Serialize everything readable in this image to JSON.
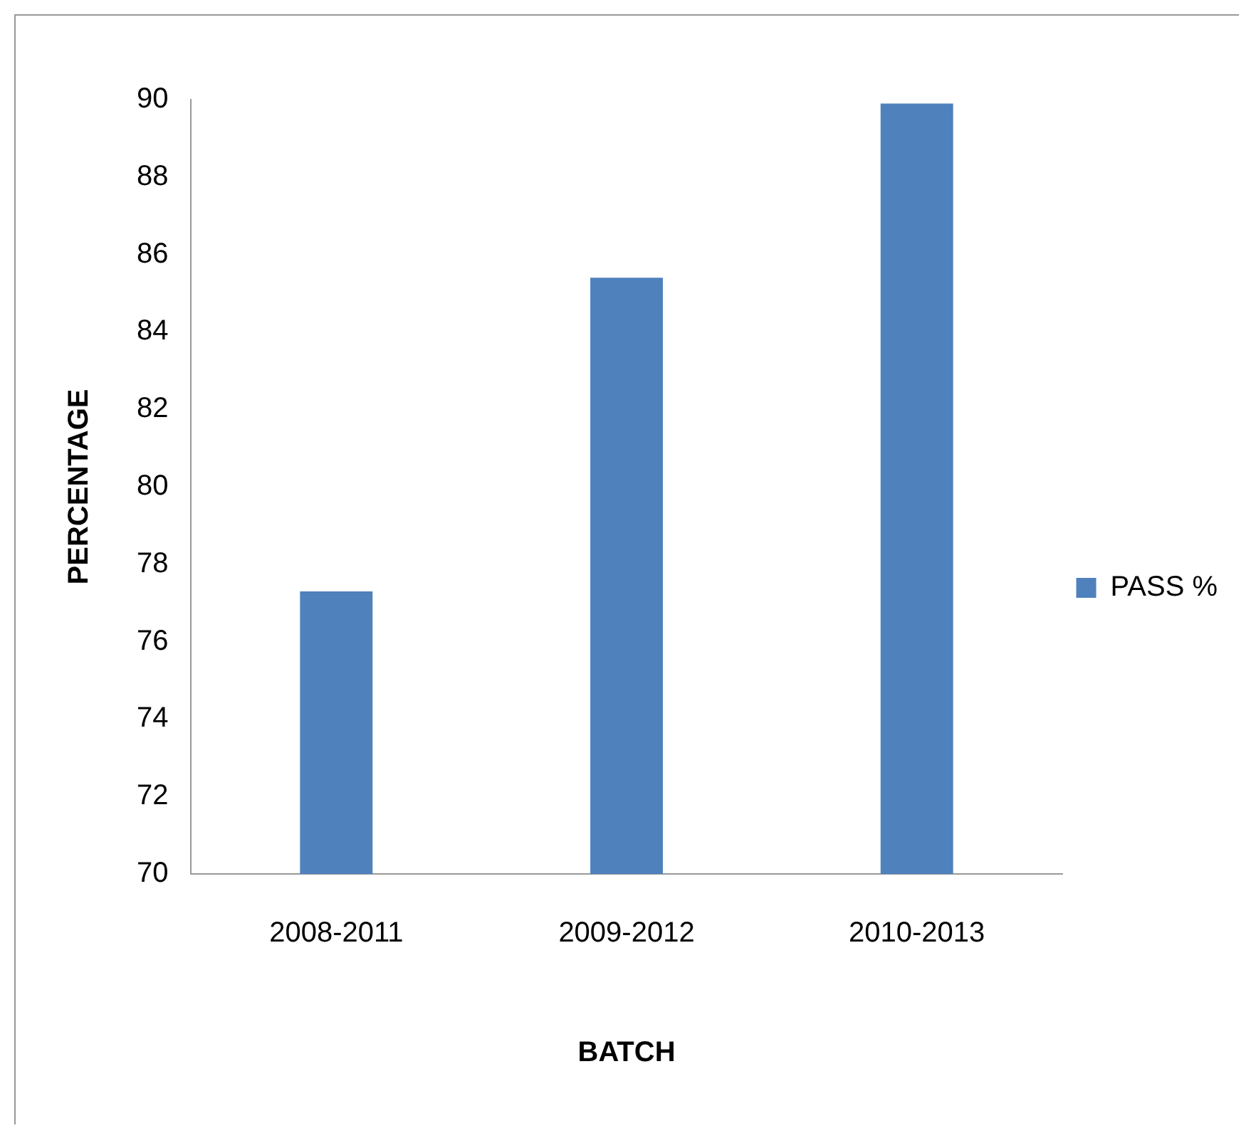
{
  "chart_data": {
    "type": "bar",
    "xlabel": "BATCH",
    "ylabel": "PERCENTAGE",
    "categories": [
      "2008-2011",
      "2009-2012",
      "2010-2013"
    ],
    "series": [
      {
        "name": "PASS %",
        "color": "#4f81bd",
        "values": [
          77.3,
          85.4,
          89.9
        ]
      }
    ],
    "ylim": [
      70,
      90
    ],
    "yticks": [
      70,
      72,
      74,
      76,
      78,
      80,
      82,
      84,
      86,
      88,
      90
    ],
    "grid": false,
    "legend": "right"
  }
}
